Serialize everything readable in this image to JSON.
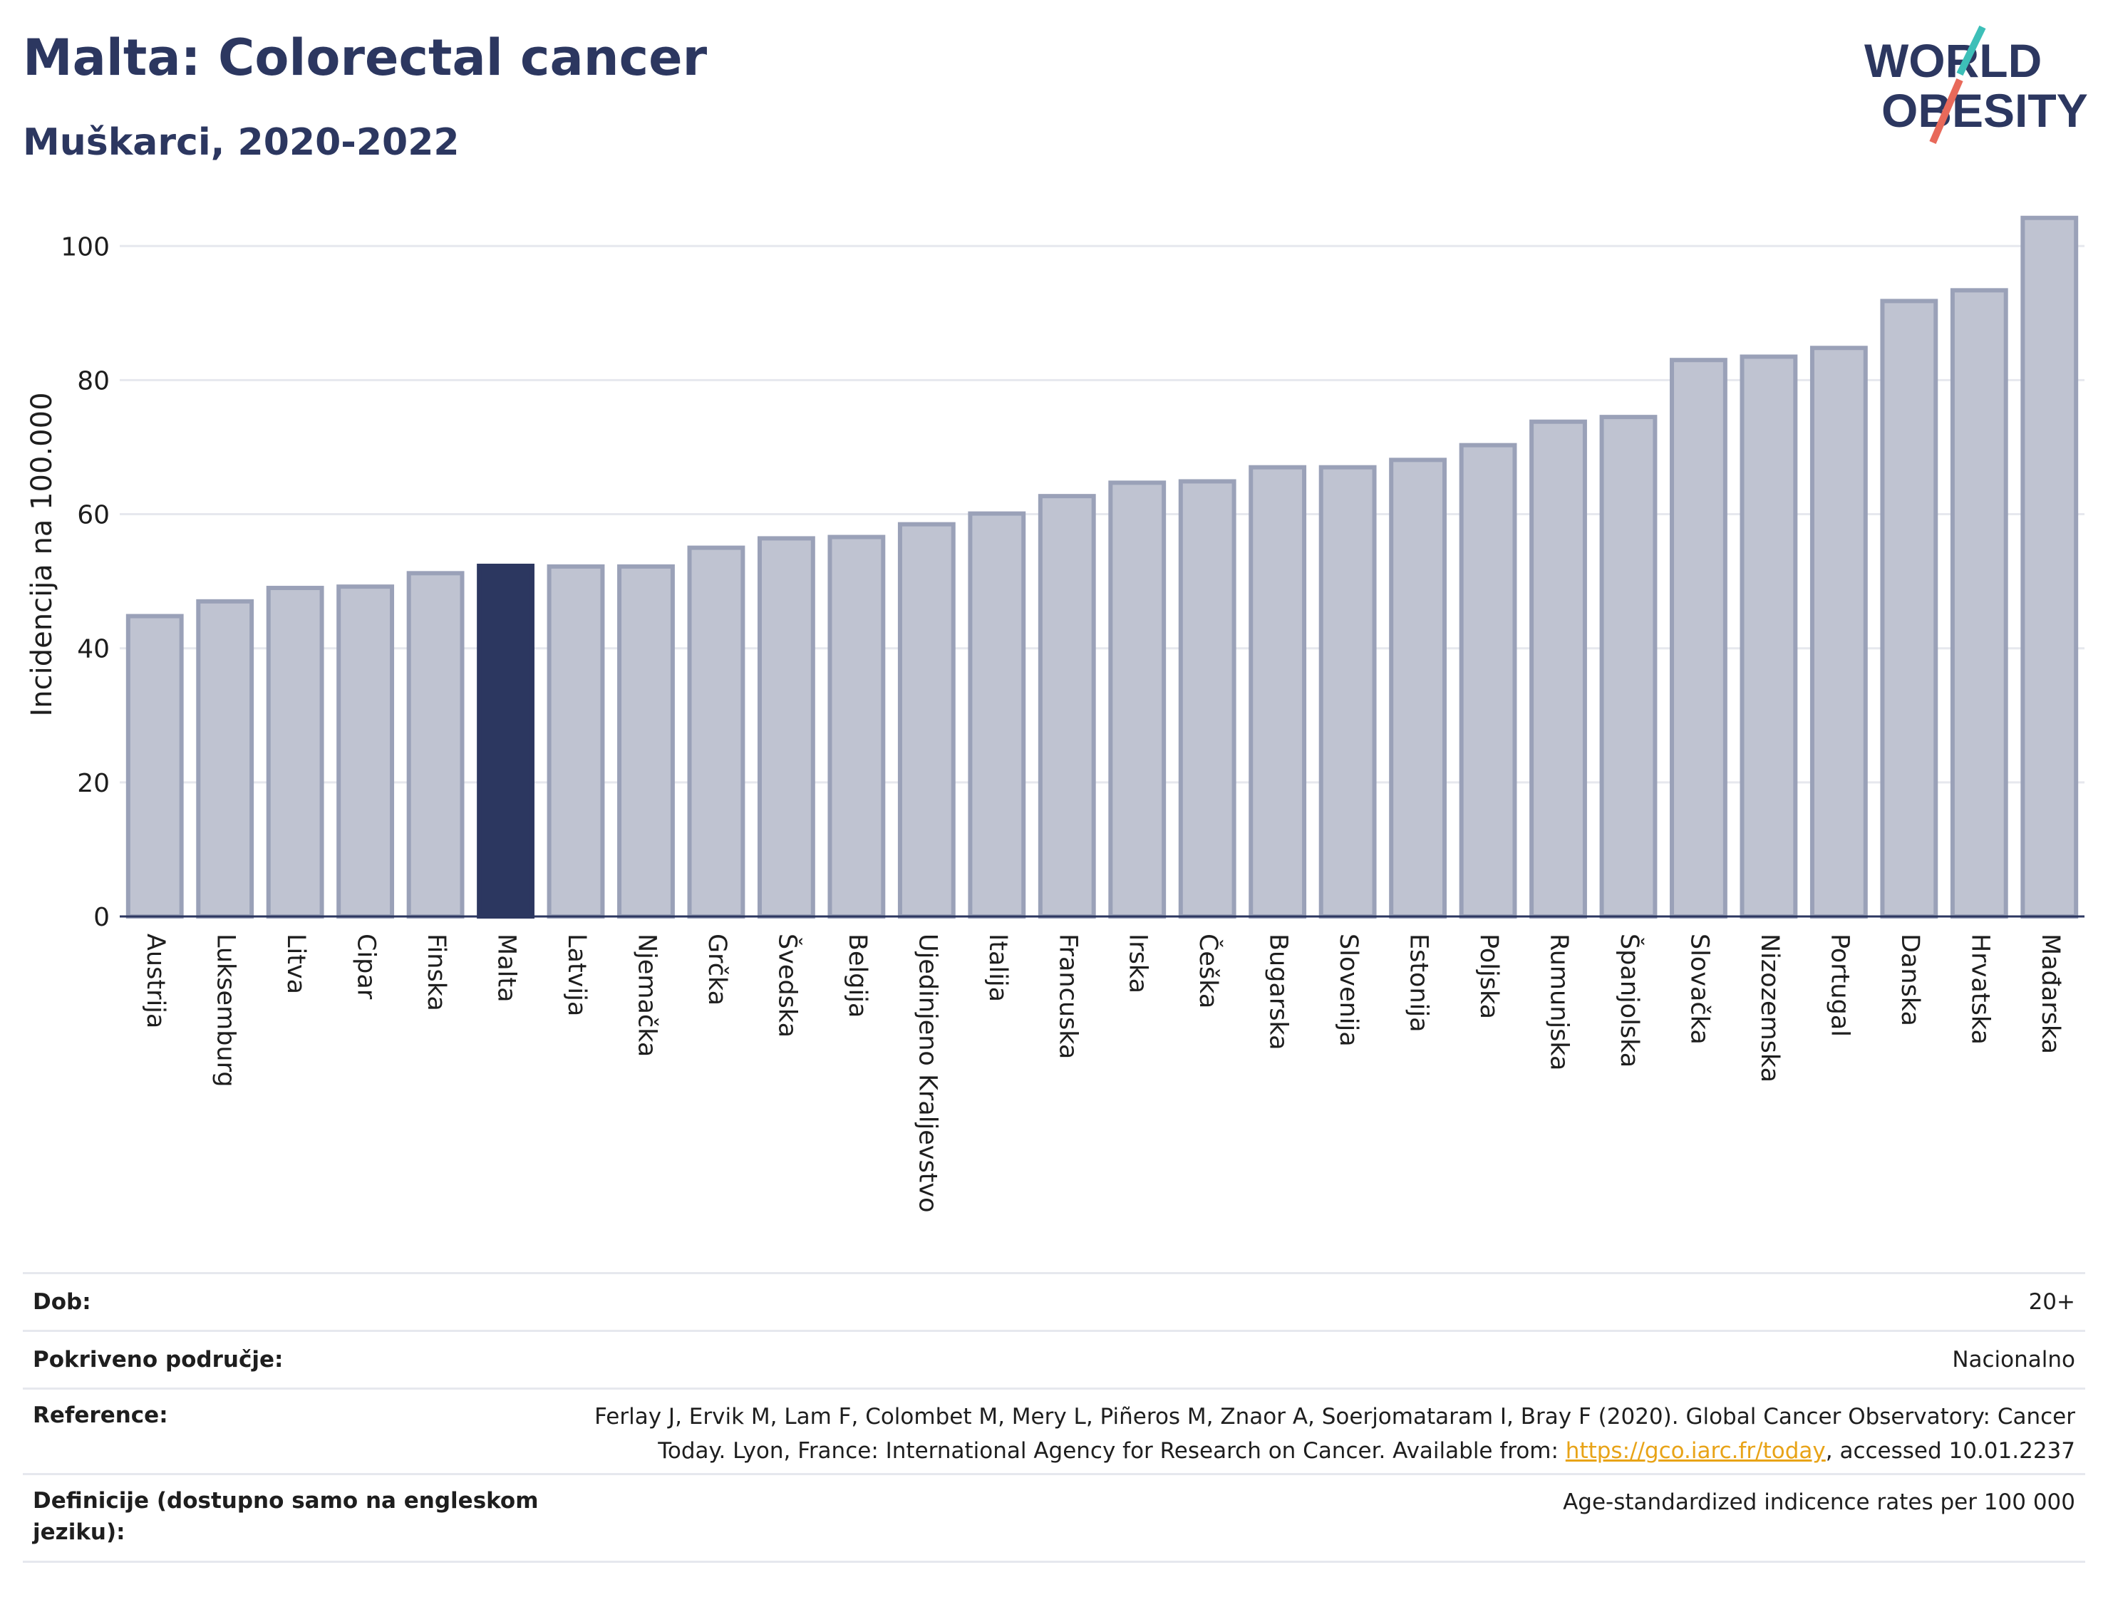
{
  "header": {
    "title": "Malta: Colorectal cancer",
    "subtitle": "Muškarci, 2020-2022"
  },
  "logo": {
    "line1": "WORLD",
    "line2": "OBESITY",
    "accent_teal": "#3dbfb8",
    "accent_coral": "#e8695a"
  },
  "colors": {
    "bar_fill": "#bfc3d1",
    "bar_stroke": "#9aa1b8",
    "highlight_fill": "#2c3760",
    "text_dark": "#2c3760",
    "grid": "#e6e8ee",
    "link": "#e8a317"
  },
  "chart_data": {
    "type": "bar",
    "ylabel": "Incidencija na 100.000",
    "xlabel": "",
    "ylim": [
      0,
      108
    ],
    "yticks": [
      0,
      20,
      40,
      60,
      80,
      100
    ],
    "grid": true,
    "highlight": "Malta",
    "categories": [
      "Austrija",
      "Luksemburg",
      "Litva",
      "Cipar",
      "Finska",
      "Malta",
      "Latvija",
      "Njemačka",
      "Grčka",
      "Švedska",
      "Belgija",
      "Ujedinjeno Kraljevstvo",
      "Italija",
      "Francuska",
      "Irska",
      "Češka",
      "Bugarska",
      "Slovenija",
      "Estonija",
      "Poljska",
      "Rumunjska",
      "Španjolska",
      "Slovačka",
      "Nizozemska",
      "Portugal",
      "Danska",
      "Hrvatska",
      "Mađarska"
    ],
    "values": [
      44.8,
      47.0,
      49.0,
      49.2,
      51.2,
      52.3,
      52.2,
      52.2,
      55.0,
      56.4,
      56.6,
      58.5,
      60.1,
      62.7,
      64.7,
      64.9,
      67.0,
      67.0,
      68.1,
      70.3,
      73.8,
      74.5,
      83.0,
      83.5,
      84.8,
      91.8,
      93.4,
      104.2
    ]
  },
  "meta": {
    "rows": [
      {
        "label": "Dob:",
        "value": "20+"
      },
      {
        "label": "Pokriveno područje:",
        "value": "Nacionalno"
      },
      {
        "label": "Reference:",
        "value_pre": "Ferlay J, Ervik M, Lam F, Colombet M, Mery L, Piñeros M, Znaor A, Soerjomataram I, Bray F (2020). Global Cancer Observatory: Cancer Today. Lyon, France: International Agency for Research on Cancer. Available from: ",
        "link": "https://gco.iarc.fr/today",
        "value_post": ", accessed 10.01.2237"
      },
      {
        "label": "Definicije (dostupno samo na engleskom jeziku):",
        "value": "Age-standardized indicence rates per 100 000"
      }
    ]
  }
}
